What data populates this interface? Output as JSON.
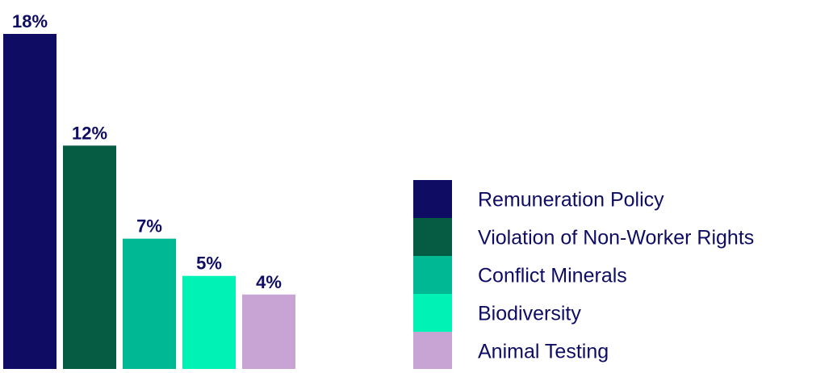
{
  "chart_data": {
    "type": "bar",
    "categories": [
      "Remuneration Policy",
      "Violation of Non-Worker Rights",
      "Conflict Minerals",
      "Biodiversity",
      "Animal Testing"
    ],
    "values": [
      18,
      12,
      7,
      5,
      4
    ],
    "value_labels": [
      "18%",
      "12%",
      "7%",
      "5%",
      "4%"
    ],
    "colors": [
      "#0f0d63",
      "#065c43",
      "#00b894",
      "#00f2b4",
      "#c8a4d4"
    ],
    "ylim": [
      0,
      18
    ],
    "grid": false,
    "legend_placement": "right",
    "title": "",
    "xlabel": "",
    "ylabel": ""
  }
}
